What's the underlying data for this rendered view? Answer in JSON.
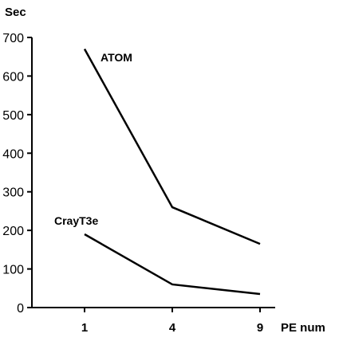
{
  "chart_data": {
    "type": "line",
    "title": "",
    "xlabel": "PE num",
    "ylabel": "Sec",
    "categories": [
      "1",
      "4",
      "9"
    ],
    "ylim": [
      0,
      700
    ],
    "yticks": [
      "0",
      "100",
      "200",
      "300",
      "400",
      "500",
      "600",
      "700"
    ],
    "grid": false,
    "legend": "none",
    "series": [
      {
        "name": "ATOM",
        "values": [
          670,
          260,
          165
        ],
        "color": "#000000"
      },
      {
        "name": "CrayT3e",
        "values": [
          190,
          60,
          35
        ],
        "color": "#000000"
      }
    ]
  }
}
